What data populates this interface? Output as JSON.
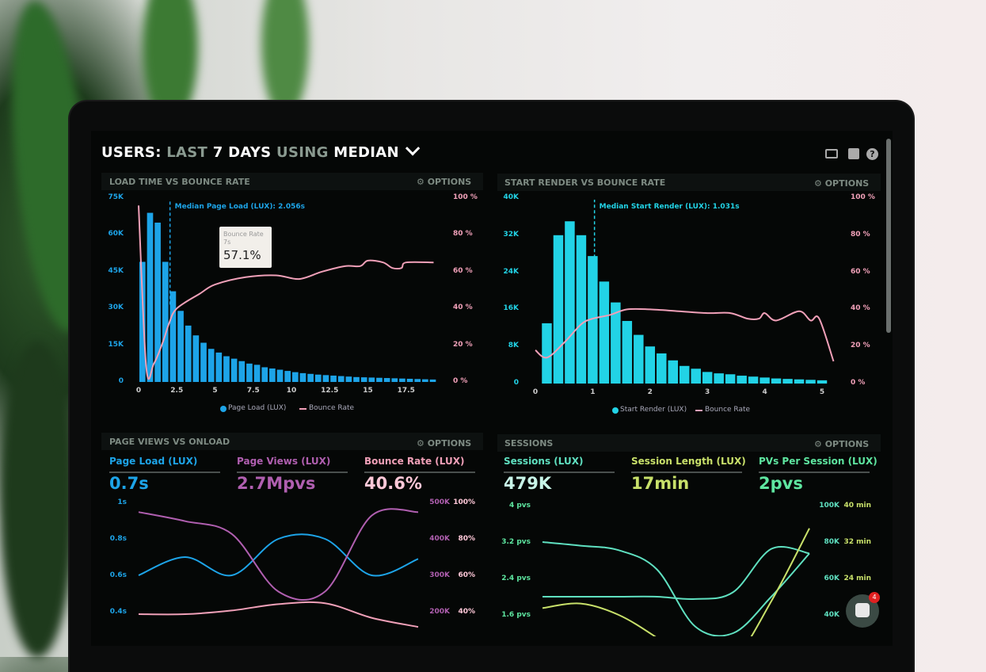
{
  "header": {
    "title_parts": [
      "USERS:",
      "LAST",
      "7 DAYS",
      "USING",
      "MEDIAN"
    ],
    "dropdown_icon": "chevron-down-icon",
    "icons": [
      "monitor-icon",
      "share-icon",
      "help-icon"
    ]
  },
  "options_label": "OPTIONS",
  "colors": {
    "blue": "#1da4e8",
    "cyan": "#22d3e6",
    "pink": "#f0a0b8",
    "purple": "#b05fb0",
    "teal": "#5fe0c0",
    "lime": "#c8e06a",
    "green": "#5ee6a0"
  },
  "chat": {
    "badge": "4"
  },
  "chart_data": [
    {
      "type": "bar",
      "title": "LOAD TIME VS BOUNCE RATE",
      "y_left_ticks": [
        "75K",
        "60K",
        "45K",
        "30K",
        "15K",
        "0"
      ],
      "y_right_ticks": [
        "100 %",
        "80 %",
        "60 %",
        "40 %",
        "20 %",
        "0 %"
      ],
      "x_ticks": [
        "0",
        "2.5",
        "5",
        "7.5",
        "10",
        "12.5",
        "15",
        "17.5"
      ],
      "xlim": [
        0,
        19.5
      ],
      "ylim_left": [
        0,
        75000
      ],
      "ylim_right": [
        0,
        100
      ],
      "median_label": "Median Page Load (LUX): 2.056s",
      "median": 2.056,
      "bin_width": 0.5,
      "bars": [
        49,
        69,
        65,
        49,
        37,
        29,
        23,
        19,
        16,
        13.5,
        12,
        10.5,
        9.5,
        8.5,
        7.5,
        7,
        6,
        5.5,
        5,
        4.5,
        4,
        3.6,
        3.3,
        3,
        2.8,
        2.6,
        2.4,
        2.2,
        2,
        1.9,
        1.8,
        1.7,
        1.6,
        1.5,
        1.4,
        1.3,
        1.2,
        1.1,
        1
      ],
      "bars_unit": "K",
      "line": [
        [
          0,
          96
        ],
        [
          0.5,
          8
        ],
        [
          1,
          10
        ],
        [
          1.6,
          22
        ],
        [
          2,
          32
        ],
        [
          2.5,
          40
        ],
        [
          4,
          48
        ],
        [
          5,
          53
        ],
        [
          7,
          57
        ],
        [
          9,
          58
        ],
        [
          10.5,
          56
        ],
        [
          12,
          60
        ],
        [
          13.5,
          63
        ],
        [
          14.5,
          63
        ],
        [
          15,
          66
        ],
        [
          16,
          65
        ],
        [
          16.6,
          62
        ],
        [
          17.2,
          62
        ],
        [
          17.5,
          65
        ],
        [
          19.3,
          65
        ]
      ],
      "legend": [
        "Page Load (LUX)",
        "Bounce Rate"
      ],
      "tooltip": {
        "label": "Bounce Rate",
        "sub": "7s",
        "value": "57.1%"
      }
    },
    {
      "type": "bar",
      "title": "START RENDER VS BOUNCE RATE",
      "y_left_ticks": [
        "40K",
        "32K",
        "24K",
        "16K",
        "8K",
        "0"
      ],
      "y_right_ticks": [
        "100 %",
        "80 %",
        "60 %",
        "40 %",
        "20 %",
        "0 %"
      ],
      "x_ticks": [
        "0",
        "1",
        "2",
        "3",
        "4",
        "5"
      ],
      "xlim": [
        0,
        5.2
      ],
      "ylim_left": [
        0,
        40000
      ],
      "ylim_right": [
        0,
        100
      ],
      "median_label": "Median Start Render (LUX): 1.031s",
      "median": 1.031,
      "bin_width": 0.2,
      "bars": [
        13,
        32,
        35,
        32,
        27.5,
        22,
        17.5,
        13.5,
        10.5,
        8,
        6.5,
        5,
        3.8,
        3.2,
        2.5,
        2.2,
        2,
        1.7,
        1.5,
        1.3,
        1.1,
        1,
        0.9,
        0.8,
        0.7
      ],
      "bars_unit": "K",
      "line": [
        [
          0,
          18
        ],
        [
          0.2,
          14
        ],
        [
          0.5,
          22
        ],
        [
          0.8,
          32
        ],
        [
          1,
          35
        ],
        [
          1.3,
          37
        ],
        [
          1.6,
          40
        ],
        [
          2,
          40
        ],
        [
          2.5,
          39
        ],
        [
          3,
          38
        ],
        [
          3.4,
          38
        ],
        [
          3.7,
          35
        ],
        [
          3.9,
          35
        ],
        [
          4,
          38
        ],
        [
          4.2,
          34
        ],
        [
          4.6,
          39
        ],
        [
          4.8,
          34
        ],
        [
          4.95,
          35
        ],
        [
          5.2,
          12
        ]
      ],
      "legend": [
        "Start Render (LUX)",
        "Bounce Rate"
      ]
    },
    {
      "type": "line",
      "title": "PAGE VIEWS VS ONLOAD",
      "kpis": [
        {
          "label": "Page Load (LUX)",
          "value": "0.7s"
        },
        {
          "label": "Page Views (LUX)",
          "value": "2.7Mpvs"
        },
        {
          "label": "Bounce Rate (LUX)",
          "value": "40.6%"
        }
      ],
      "y_left_ticks": [
        "1s",
        "0.8s",
        "0.6s",
        "0.4s"
      ],
      "y_right1_ticks": [
        "500K",
        "400K",
        "300K",
        "200K"
      ],
      "y_right2_ticks": [
        "100%",
        "80%",
        "60%",
        "40%"
      ],
      "series": [
        {
          "values": [
            0.6,
            0.7,
            0.6,
            0.8,
            0.8,
            0.6,
            0.69
          ]
        },
        {
          "values": [
            480,
            455,
            420,
            262,
            262,
            470,
            480
          ]
        },
        {
          "values": [
            40,
            40,
            42,
            45.5,
            46,
            38,
            33
          ]
        }
      ]
    },
    {
      "type": "line",
      "title": "SESSIONS",
      "kpis": [
        {
          "label": "Sessions (LUX)",
          "value": "479K"
        },
        {
          "label": "Session Length (LUX)",
          "value": "17min"
        },
        {
          "label": "PVs Per Session (LUX)",
          "value": "2pvs"
        }
      ],
      "y_left_ticks": [
        "4 pvs",
        "3.2 pvs",
        "2.4 pvs",
        "1.6 pvs"
      ],
      "y_right1_ticks": [
        "100K",
        "80K",
        "60K",
        "40K"
      ],
      "y_right2_ticks": [
        "40 min",
        "32 min",
        "24 min",
        ""
      ],
      "series": [
        {
          "values": [
            3.2,
            3.12,
            3.02,
            2.6,
            1.35,
            1.2,
            2.0,
            2.95
          ]
        },
        {
          "values": [
            2.0,
            2.0,
            2.0,
            2.0,
            1.95,
            2.1,
            3.05,
            2.95
          ]
        },
        {
          "values": [
            1.75,
            1.85,
            1.6,
            1.1,
            0.5,
            0.6,
            1.9,
            3.5
          ]
        }
      ]
    }
  ]
}
